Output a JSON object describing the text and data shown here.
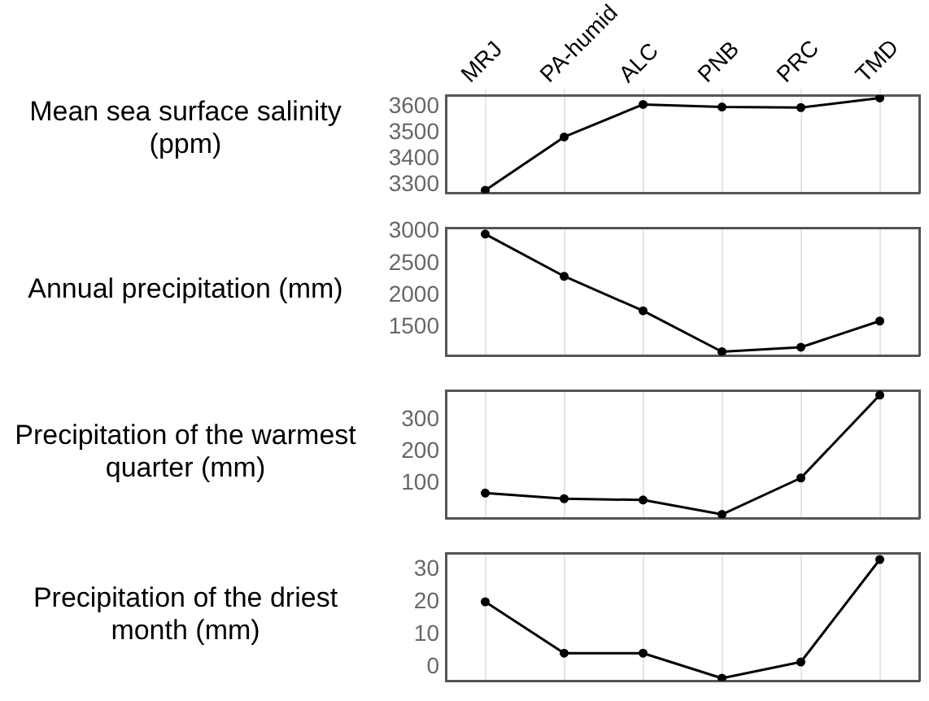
{
  "chart_data": [
    {
      "type": "line",
      "ylabel": "Mean sea surface salinity (ppm)",
      "categories": [
        "MRJ",
        "PA-humid",
        "ALC",
        "PNB",
        "PRC",
        "TMD"
      ],
      "series": [
        {
          "color": "#000000",
          "values": [
            3280,
            3485,
            3610,
            3600,
            3598,
            3635
          ]
        }
      ],
      "ylim": [
        3270,
        3645
      ],
      "yticks": [
        3300,
        3400,
        3500,
        3600
      ],
      "grid": "x",
      "marker": "circle",
      "line_style": "solid"
    },
    {
      "type": "line",
      "ylabel": "Annual precipitation (mm)",
      "categories": [
        null,
        null,
        null,
        null,
        null,
        null
      ],
      "series": [
        {
          "color": "#000000",
          "values": [
            2960,
            2300,
            1760,
            1120,
            1190,
            1600
          ]
        }
      ],
      "ylim": [
        1060,
        3060
      ],
      "yticks": [
        1500,
        2000,
        2500,
        3000
      ],
      "grid": "x",
      "marker": "circle",
      "line_style": "solid",
      "tick_labels": "y"
    },
    {
      "type": "line",
      "ylabel": "Precipitation of the warmest quarter (mm)",
      "categories": [
        null,
        null,
        null,
        null,
        null,
        null
      ],
      "series": [
        {
          "color": "#000000",
          "values": [
            68,
            50,
            46,
            0,
            116,
            380
          ]
        }
      ],
      "ylim": [
        -12,
        395
      ],
      "yticks": [
        100,
        200,
        300
      ],
      "grid": "x",
      "marker": "circle",
      "line_style": "solid",
      "tick_labels": "y"
    },
    {
      "type": "line",
      "ylabel": "Precipitation of the driest month (mm)",
      "categories": [
        null,
        null,
        null,
        null,
        null,
        null
      ],
      "series": [
        {
          "color": "#000000",
          "values": [
            20,
            4.2,
            4.2,
            -3.5,
            1.5,
            33
          ]
        }
      ],
      "ylim": [
        -4.3,
        35
      ],
      "yticks": [
        0,
        10,
        20,
        30
      ],
      "grid": "x",
      "marker": "circle",
      "line_style": "solid",
      "tick_labels": "y"
    }
  ]
}
